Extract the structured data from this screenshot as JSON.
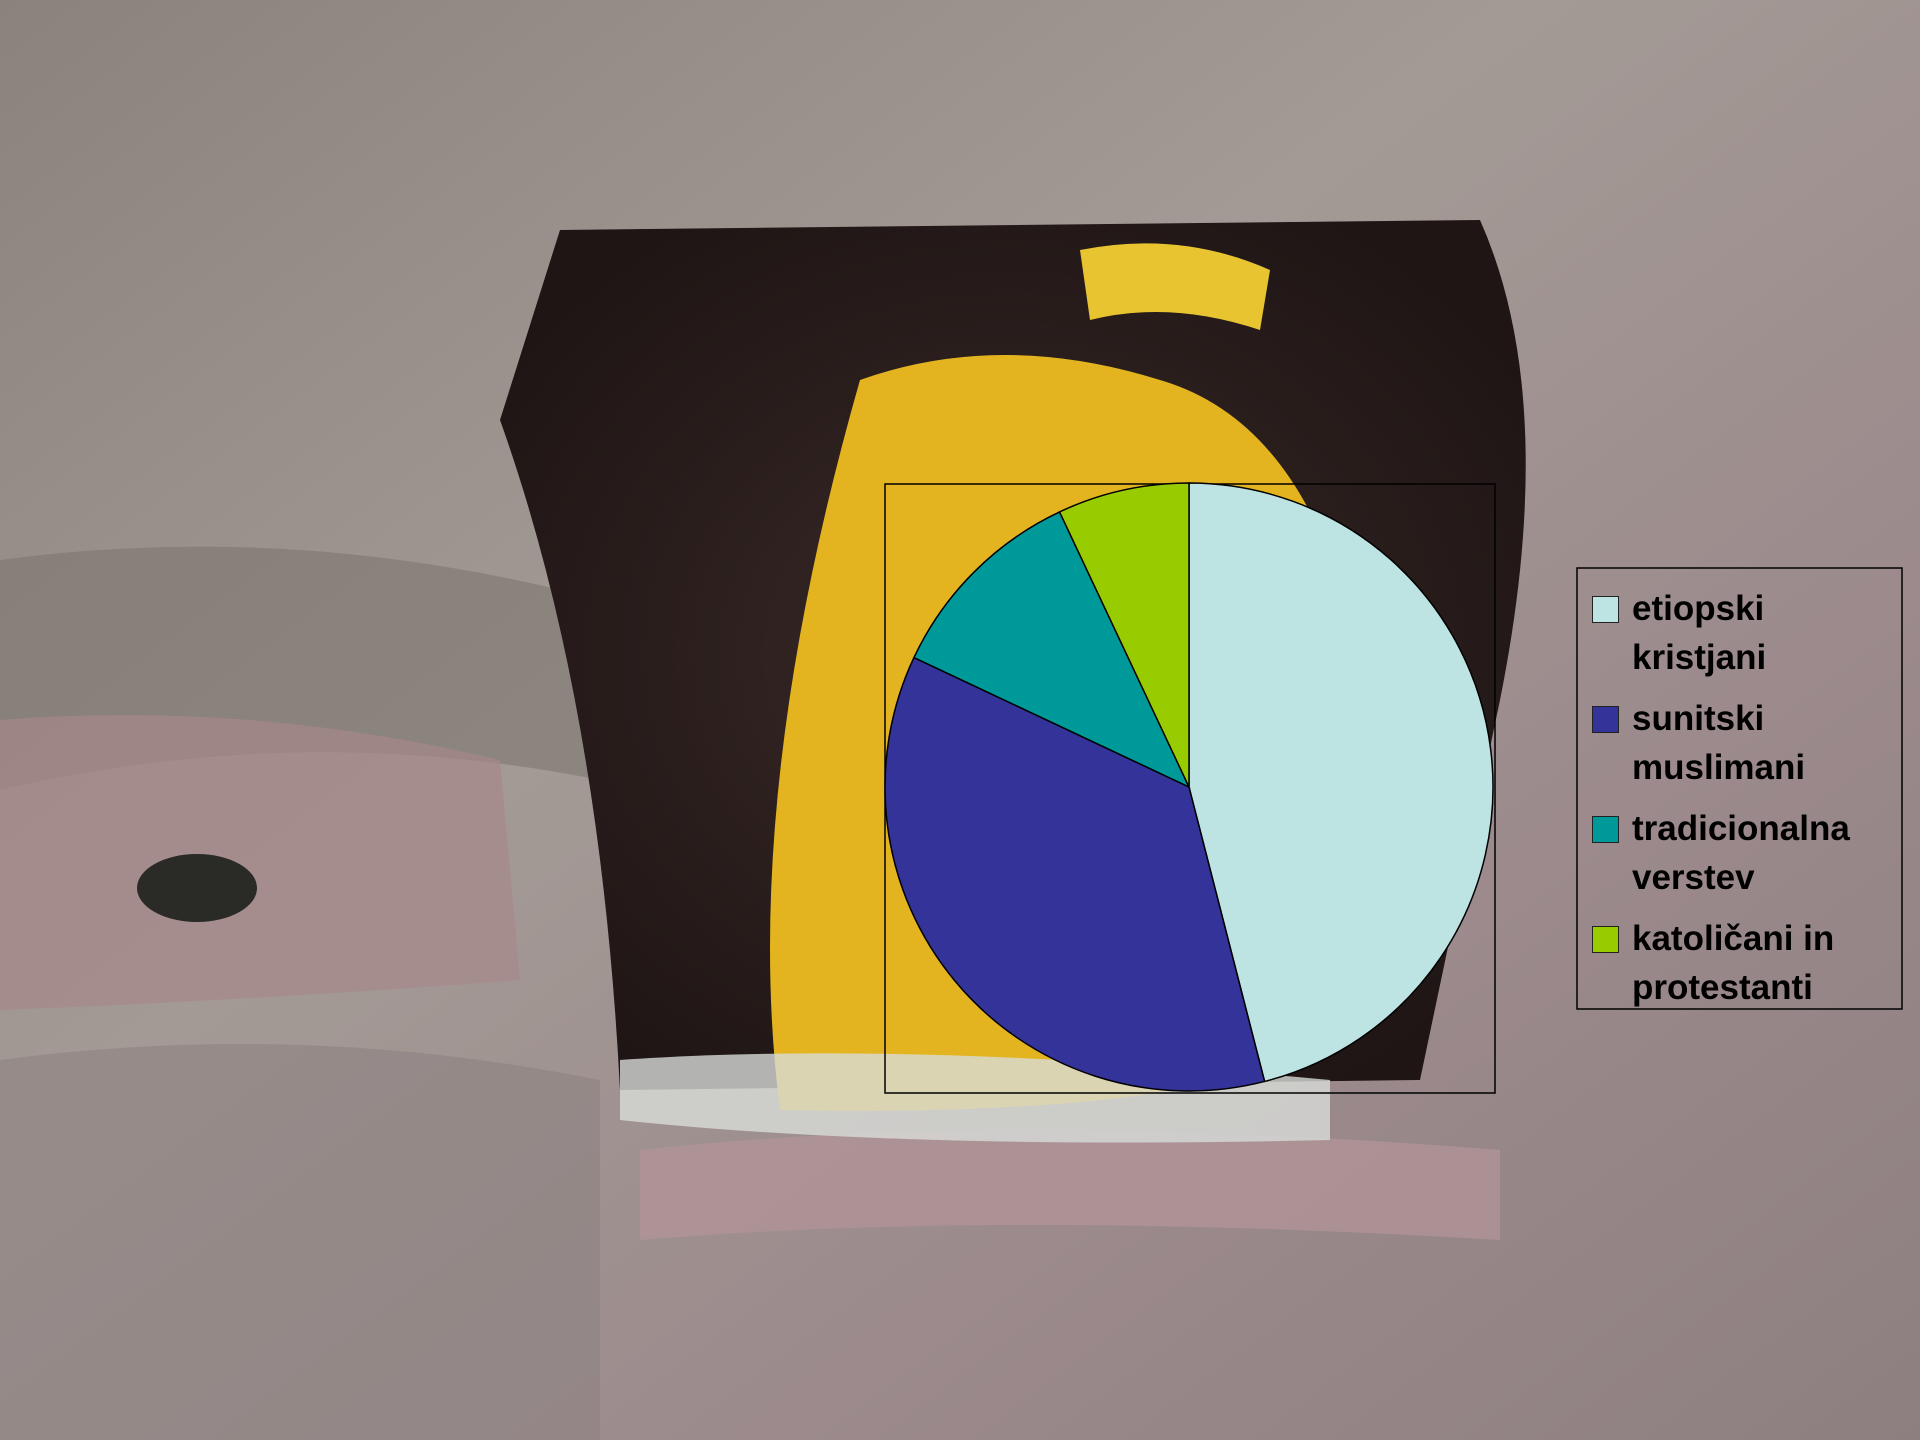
{
  "chart_data": {
    "type": "pie",
    "categories": [
      "etiopski kristjani",
      "sunitski muslimani",
      "tradicionalna verstev",
      "katoličani in protestanti"
    ],
    "values": [
      46,
      36,
      11,
      7
    ],
    "colors": [
      "#bde3e3",
      "#333399",
      "#009999",
      "#99cc00"
    ],
    "start_angle": 0,
    "direction": "clockwise",
    "legend": "right"
  }
}
